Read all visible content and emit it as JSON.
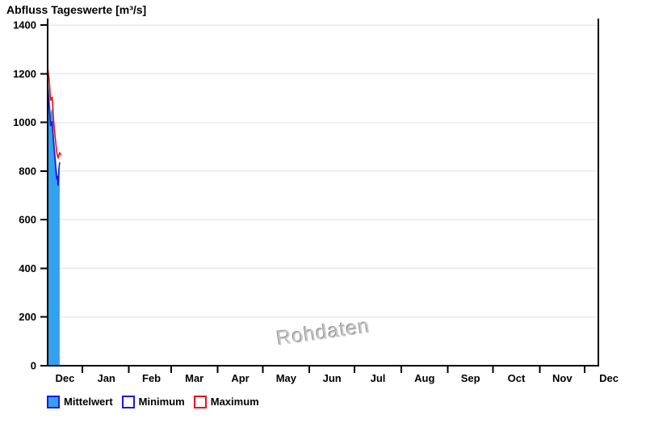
{
  "title": "Abfluss Tageswerte [m³/s]",
  "watermark": "Rohdaten",
  "legend": {
    "items": [
      {
        "label": "Mittelwert",
        "swatch_fill": "#33A0F0",
        "swatch_border": "#1A1AE6"
      },
      {
        "label": "Minimum",
        "swatch_fill": "#FFFFFF",
        "swatch_border": "#1A1AE6"
      },
      {
        "label": "Maximum",
        "swatch_fill": "#FFFFFF",
        "swatch_border": "#EE1111"
      }
    ]
  },
  "chart_data": {
    "type": "area+line",
    "title": "Abfluss Tageswerte [m³/s]",
    "xlabel": "",
    "ylabel": "",
    "ylim": [
      0,
      1400
    ],
    "yticks": [
      0,
      200,
      400,
      600,
      800,
      1000,
      1200,
      1400
    ],
    "grid": {
      "horizontal": true,
      "vertical": false,
      "color": "#ebebeb"
    },
    "legend_position": "bottom-left",
    "axis_color": "#000000",
    "x_axis": {
      "total_days": 366,
      "month_tick_days": [
        23,
        54,
        82,
        113,
        143,
        174,
        204,
        235,
        266,
        296,
        327,
        357
      ],
      "month_labels": [
        {
          "text": "Dec",
          "day": 11.5
        },
        {
          "text": "Jan",
          "day": 39
        },
        {
          "text": "Feb",
          "day": 69
        },
        {
          "text": "Mar",
          "day": 97.5
        },
        {
          "text": "Apr",
          "day": 128
        },
        {
          "text": "May",
          "day": 158.5
        },
        {
          "text": "Jun",
          "day": 189
        },
        {
          "text": "Jul",
          "day": 219.5
        },
        {
          "text": "Aug",
          "day": 250.5
        },
        {
          "text": "Sep",
          "day": 281
        },
        {
          "text": "Oct",
          "day": 311.5
        },
        {
          "text": "Nov",
          "day": 342
        },
        {
          "text": "Dec",
          "day": 373
        }
      ]
    },
    "series": [
      {
        "name": "Mittelwert",
        "type": "area",
        "color": "#33A0F0",
        "days": [
          0,
          1,
          2,
          3,
          4,
          5,
          6,
          6.5,
          7,
          7.5,
          8
        ],
        "values": [
          1195,
          1130,
          1040,
          1060,
          960,
          890,
          815,
          790,
          770,
          830,
          845
        ]
      },
      {
        "name": "Minimum",
        "type": "line",
        "color": "#1A1AE6",
        "days": [
          0,
          1,
          2,
          3,
          4,
          5,
          6,
          6.5,
          7,
          7.5,
          8
        ],
        "values": [
          1150,
          1065,
          985,
          1005,
          910,
          840,
          765,
          780,
          740,
          810,
          835
        ]
      },
      {
        "name": "Maximum",
        "type": "line",
        "color": "#EE1111",
        "days": [
          0,
          1,
          2,
          3,
          4,
          5,
          6,
          6.5,
          7,
          7.5,
          8,
          9
        ],
        "values": [
          1225,
          1175,
          1090,
          1105,
          1005,
          940,
          880,
          862,
          855,
          868,
          875,
          865
        ]
      }
    ]
  }
}
